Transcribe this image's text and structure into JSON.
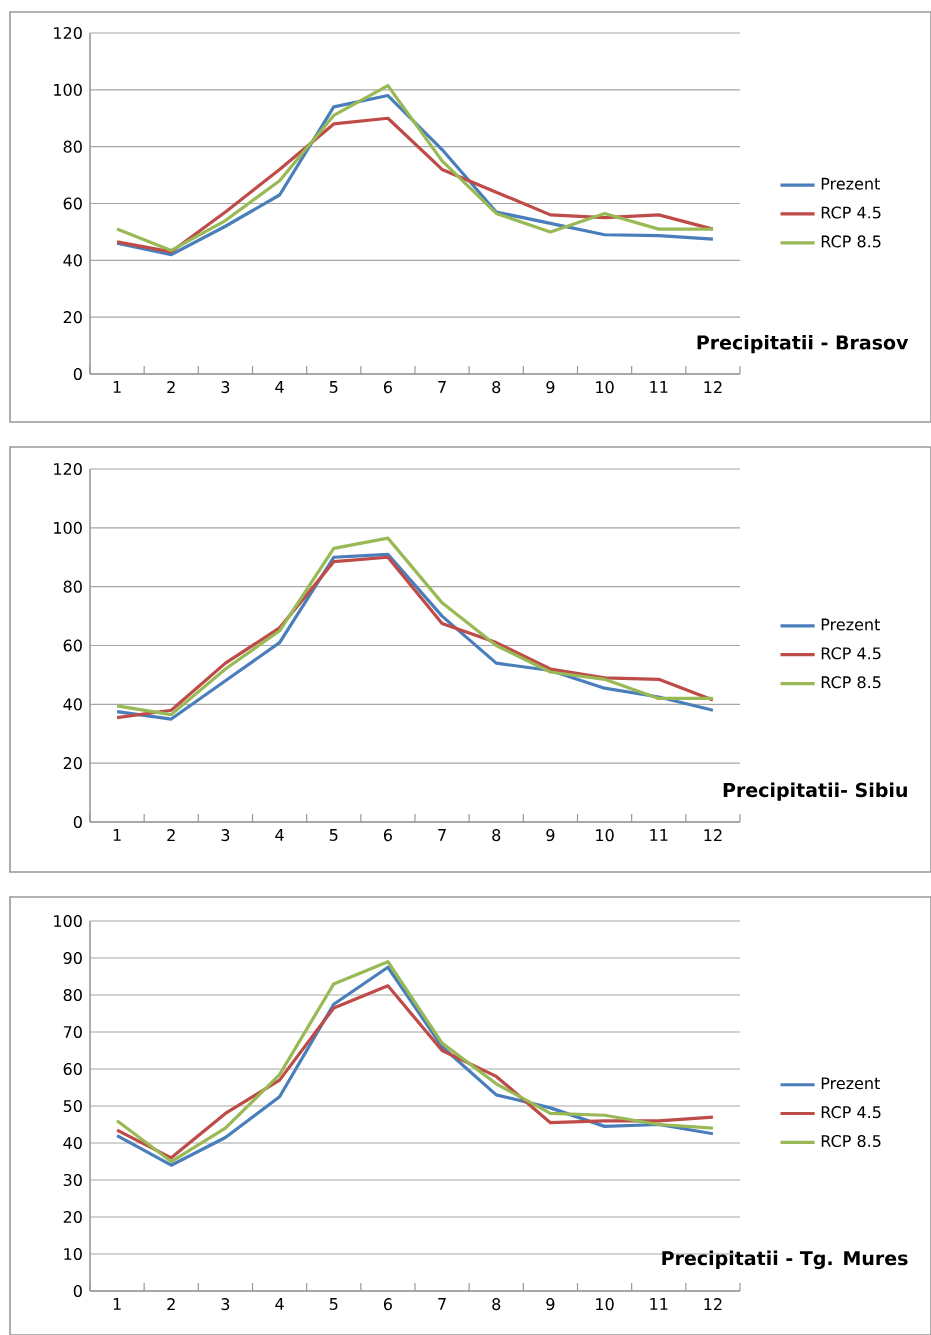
{
  "chart_data": [
    {
      "type": "line",
      "title": "Precipitatii - Brasov",
      "categories": [
        "1",
        "2",
        "3",
        "4",
        "5",
        "6",
        "7",
        "8",
        "9",
        "10",
        "11",
        "12"
      ],
      "ylim": [
        0,
        120
      ],
      "yticks": [
        0,
        20,
        40,
        60,
        80,
        100,
        120
      ],
      "grid": "y",
      "legend": "right",
      "series": [
        {
          "name": "Prezent",
          "color": "#4a7ebb",
          "values": [
            46,
            42,
            52,
            63,
            94,
            98,
            79,
            57,
            53,
            49,
            48.7,
            47.5
          ]
        },
        {
          "name": "RCP 4.5",
          "color": "#be4b48",
          "values": [
            46.5,
            43,
            57,
            72,
            88,
            90,
            72,
            64,
            56,
            55,
            56,
            51
          ]
        },
        {
          "name": "RCP 8.5",
          "color": "#98b954",
          "values": [
            51,
            43.5,
            54,
            68,
            91,
            101.5,
            75,
            56.5,
            50,
            56.5,
            51,
            51
          ]
        }
      ]
    },
    {
      "type": "line",
      "title": "Precipitatii- Sibiu",
      "categories": [
        "1",
        "2",
        "3",
        "4",
        "5",
        "6",
        "7",
        "8",
        "9",
        "10",
        "11",
        "12"
      ],
      "ylim": [
        0,
        120
      ],
      "yticks": [
        0,
        20,
        40,
        60,
        80,
        100,
        120
      ],
      "grid": "y",
      "legend": "right",
      "series": [
        {
          "name": "Prezent",
          "color": "#4a7ebb",
          "values": [
            37.5,
            35,
            48,
            61,
            90,
            91,
            70,
            54,
            51.5,
            45.5,
            42.5,
            38
          ]
        },
        {
          "name": "RCP 4.5",
          "color": "#be4b48",
          "values": [
            35.5,
            38,
            54,
            66,
            88.5,
            90,
            67.5,
            61,
            52,
            49,
            48.5,
            41.5
          ]
        },
        {
          "name": "RCP 8.5",
          "color": "#98b954",
          "values": [
            39.5,
            36.5,
            52,
            65,
            93,
            96.5,
            74.5,
            60,
            51,
            48.5,
            42,
            42
          ]
        }
      ]
    },
    {
      "type": "line",
      "title": "Precipitatii - Tg. Mures",
      "categories": [
        "1",
        "2",
        "3",
        "4",
        "5",
        "6",
        "7",
        "8",
        "9",
        "10",
        "11",
        "12"
      ],
      "ylim": [
        0,
        100
      ],
      "yticks": [
        0,
        10,
        20,
        30,
        40,
        50,
        60,
        70,
        80,
        90,
        100
      ],
      "grid": "y",
      "legend": "right",
      "series": [
        {
          "name": "Prezent",
          "color": "#4a7ebb",
          "values": [
            42,
            34,
            41.5,
            52.5,
            77.5,
            87.5,
            66,
            53,
            49.5,
            44.5,
            45,
            42.5
          ]
        },
        {
          "name": "RCP 4.5",
          "color": "#be4b48",
          "values": [
            43.5,
            36,
            48,
            57,
            76.5,
            82.5,
            65,
            58,
            45.5,
            46,
            46,
            47
          ]
        },
        {
          "name": "RCP 8.5",
          "color": "#98b954",
          "values": [
            46,
            35,
            44,
            58.5,
            83,
            89,
            67,
            56,
            48,
            47.5,
            45,
            44
          ]
        }
      ]
    }
  ]
}
